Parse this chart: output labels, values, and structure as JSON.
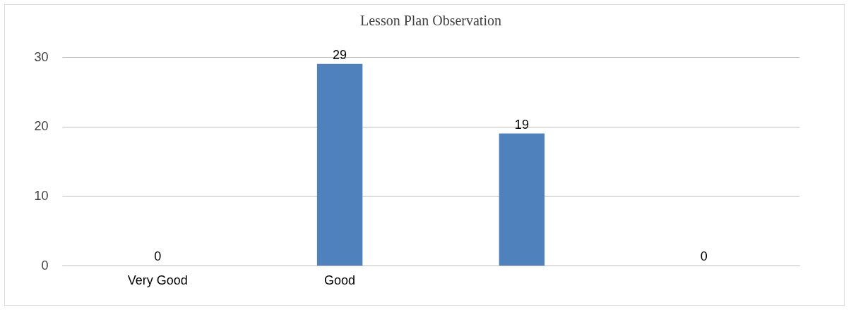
{
  "chart_data": {
    "type": "bar",
    "title": "Lesson Plan Observation",
    "categories": [
      "Very Good",
      "Good",
      null,
      null
    ],
    "values": [
      0,
      29,
      19,
      0
    ],
    "color": "#4f81bd",
    "ylim": [
      0,
      30
    ],
    "yticks": [
      0,
      10,
      20,
      30
    ],
    "grid": "y",
    "data_labels": true
  }
}
